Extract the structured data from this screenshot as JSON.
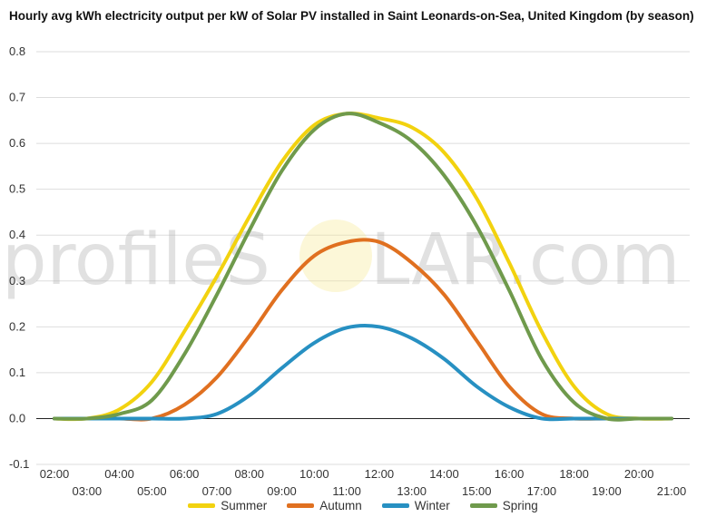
{
  "title": "Hourly avg kWh electricity output per kW of Solar PV installed in Saint Leonards-on-Sea, United Kingdom (by season)",
  "watermark": {
    "text_left": "profileS",
    "text_right": "LAR.com"
  },
  "chart_data": {
    "type": "line",
    "x": [
      "02:00",
      "03:00",
      "04:00",
      "05:00",
      "06:00",
      "07:00",
      "08:00",
      "09:00",
      "10:00",
      "11:00",
      "12:00",
      "13:00",
      "14:00",
      "15:00",
      "16:00",
      "17:00",
      "18:00",
      "19:00",
      "20:00",
      "21:00"
    ],
    "ylim": [
      -0.1,
      0.8
    ],
    "yticks": [
      "-0.1",
      "0.0",
      "0.1",
      "0.2",
      "0.3",
      "0.4",
      "0.5",
      "0.6",
      "0.7",
      "0.8"
    ],
    "grid": true,
    "legend_position": "bottom",
    "series": [
      {
        "name": "Summer",
        "color": "#f2d20f",
        "values": [
          0.0,
          0.0,
          0.02,
          0.08,
          0.19,
          0.31,
          0.44,
          0.56,
          0.64,
          0.665,
          0.655,
          0.635,
          0.58,
          0.48,
          0.34,
          0.19,
          0.07,
          0.01,
          0.0,
          0.0
        ]
      },
      {
        "name": "Autumn",
        "color": "#e07020",
        "values": [
          0.0,
          0.0,
          0.0,
          0.0,
          0.03,
          0.09,
          0.18,
          0.28,
          0.355,
          0.385,
          0.385,
          0.34,
          0.27,
          0.17,
          0.07,
          0.01,
          0.0,
          0.0,
          0.0,
          0.0
        ]
      },
      {
        "name": "Winter",
        "color": "#2790c2",
        "values": [
          0.0,
          0.0,
          0.0,
          0.0,
          0.0,
          0.01,
          0.05,
          0.11,
          0.165,
          0.198,
          0.2,
          0.175,
          0.13,
          0.07,
          0.025,
          0.0,
          0.0,
          0.0,
          0.0,
          0.0
        ]
      },
      {
        "name": "Spring",
        "color": "#6f9a4c",
        "values": [
          0.0,
          0.0,
          0.01,
          0.04,
          0.14,
          0.27,
          0.41,
          0.54,
          0.63,
          0.665,
          0.645,
          0.605,
          0.53,
          0.42,
          0.28,
          0.13,
          0.035,
          0.0,
          0.0,
          0.0
        ]
      }
    ]
  }
}
